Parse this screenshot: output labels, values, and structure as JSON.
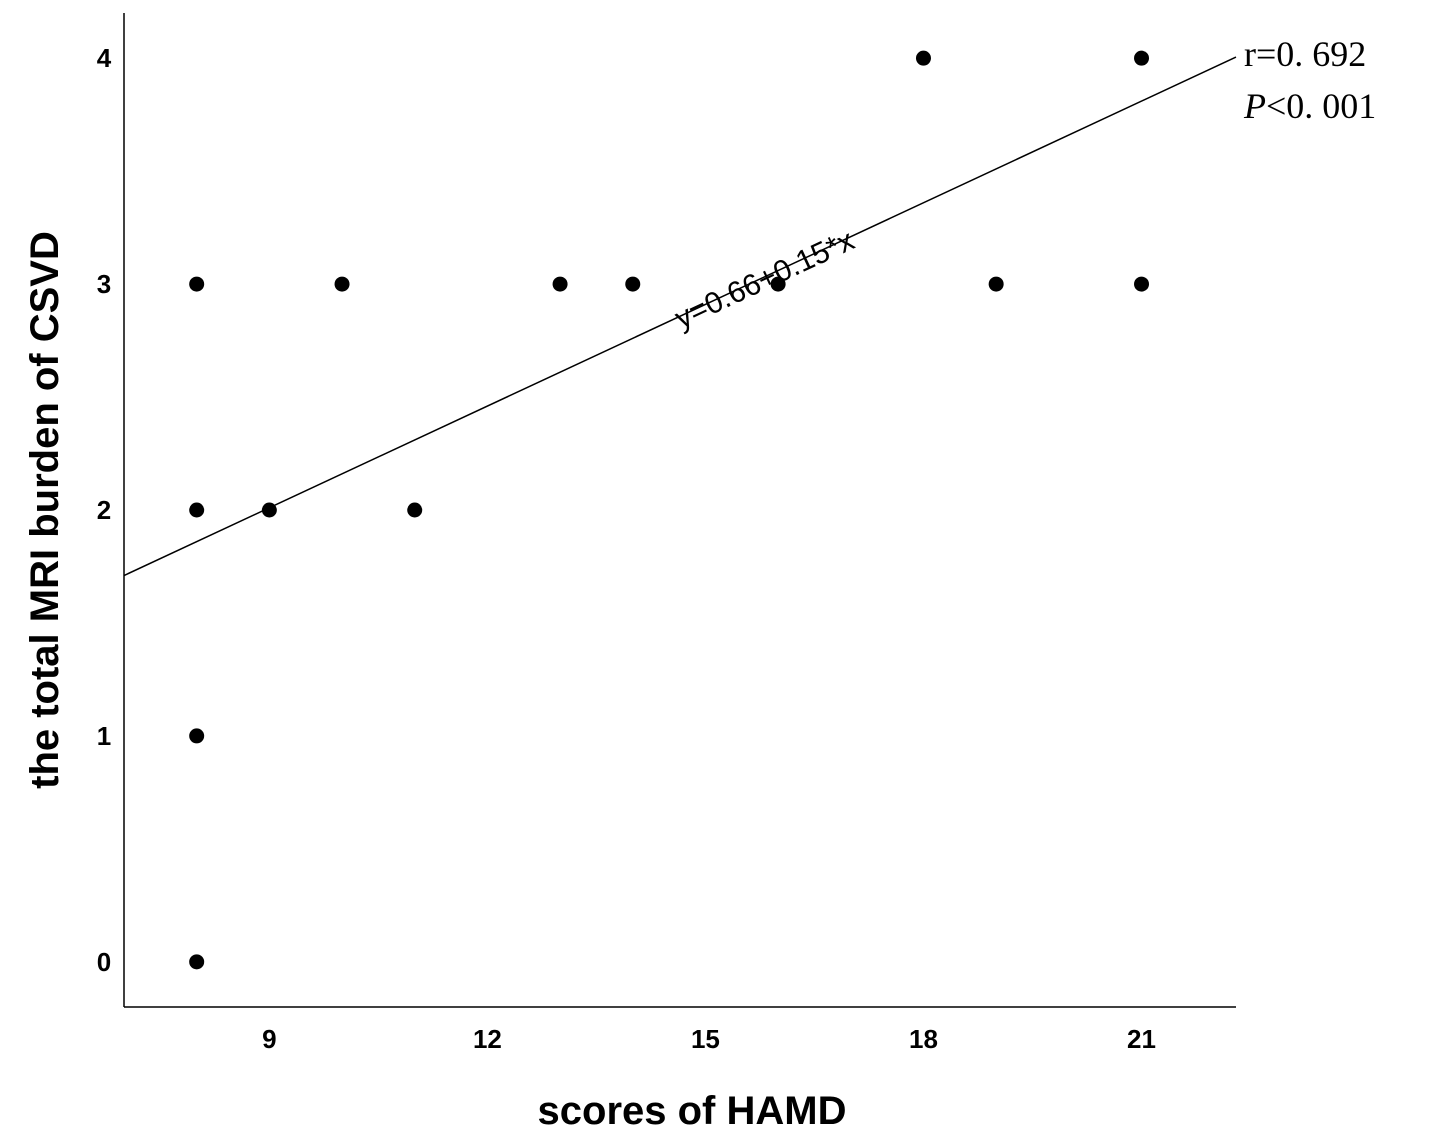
{
  "chart_data": {
    "type": "scatter",
    "title": "",
    "xlabel": "scores of HAMD",
    "ylabel": "the total MRI burden of CSVD",
    "xlim": [
      7.0,
      22.3
    ],
    "ylim": [
      -0.2,
      4.2
    ],
    "x_ticks": [
      9,
      12,
      15,
      18,
      21
    ],
    "y_ticks": [
      0,
      1,
      2,
      3,
      4
    ],
    "grid": false,
    "points": [
      {
        "x": 8,
        "y": 0
      },
      {
        "x": 8,
        "y": 1
      },
      {
        "x": 8,
        "y": 2
      },
      {
        "x": 8,
        "y": 3
      },
      {
        "x": 9,
        "y": 2
      },
      {
        "x": 10,
        "y": 3
      },
      {
        "x": 11,
        "y": 2
      },
      {
        "x": 13,
        "y": 3
      },
      {
        "x": 14,
        "y": 3
      },
      {
        "x": 16,
        "y": 3
      },
      {
        "x": 18,
        "y": 4
      },
      {
        "x": 19,
        "y": 3
      },
      {
        "x": 21,
        "y": 4
      },
      {
        "x": 21,
        "y": 3
      }
    ],
    "fit_line": {
      "intercept": 0.66,
      "slope": 0.15
    },
    "annotations": {
      "equation": "y=0.66+0.15*x",
      "r_text": "r=0. 692",
      "p_symbol": "P",
      "p_text": "<0. 001"
    }
  }
}
